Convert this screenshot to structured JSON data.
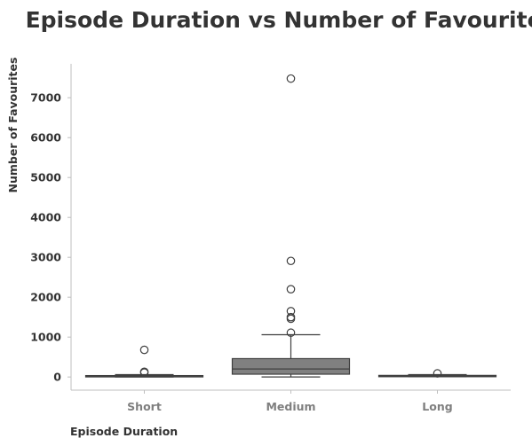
{
  "chart_data": {
    "type": "box",
    "title": "Episode Duration vs Number of Favourites",
    "xlabel": "Episode Duration",
    "ylabel": "Number of Favourites",
    "categories": [
      "Short",
      "Medium",
      "Long"
    ],
    "ylim": [
      -330,
      7850
    ],
    "yticks": [
      0,
      1000,
      2000,
      3000,
      4000,
      5000,
      6000,
      7000
    ],
    "grid": false,
    "box_color": "#808080",
    "edge_color": "#3f3f3f",
    "axis_color": "#bfbfbf",
    "boxes": [
      {
        "category": "Short",
        "whisker_low": 0,
        "q1": 5,
        "median": 15,
        "q3": 35,
        "whisker_high": 60,
        "outliers": [
          680,
          130,
          110
        ]
      },
      {
        "category": "Medium",
        "whisker_low": 0,
        "q1": 70,
        "median": 200,
        "q3": 460,
        "whisker_high": 1060,
        "outliers": [
          7480,
          2910,
          2200,
          1650,
          1500,
          1460,
          1110
        ]
      },
      {
        "category": "Long",
        "whisker_low": 5,
        "q1": 10,
        "median": 20,
        "q3": 40,
        "whisker_high": 60,
        "outliers": [
          90
        ]
      }
    ]
  }
}
